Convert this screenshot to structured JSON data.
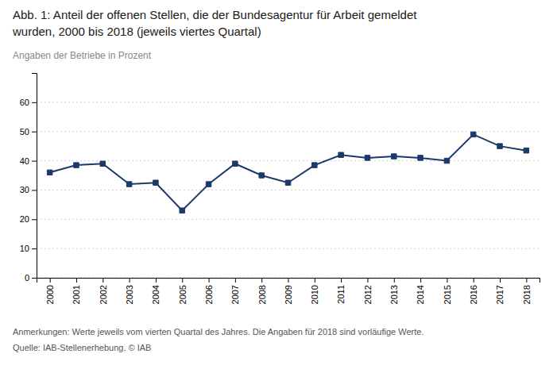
{
  "chart_data": {
    "type": "line",
    "title": [
      "Abb. 1: Anteil der offenen Stellen, die der Bundesagentur für Arbeit gemeldet",
      "wurden, 2000 bis 2018 (jeweils viertes Quartal)"
    ],
    "subtitle": "Angaben der Betriebe in Prozent",
    "annotations": [
      "Anmerkungen: Werte jeweils vom vierten Quartal des Jahres. Die Angaben für 2018 sind vorläufige Werte.",
      "Quelle: IAB-Stellenerhebung. © IAB"
    ],
    "x": [
      2000,
      2001,
      2002,
      2003,
      2004,
      2005,
      2006,
      2007,
      2008,
      2009,
      2010,
      2011,
      2012,
      2013,
      2014,
      2015,
      2016,
      2017,
      2018
    ],
    "values": [
      36,
      38.5,
      39,
      32,
      32.5,
      23,
      32,
      39,
      35,
      32.5,
      38.5,
      42,
      41,
      41.5,
      41,
      40,
      49,
      45,
      43.5
    ],
    "color": "#1b3a6b",
    "marker": "square",
    "xlim": [
      1999.5,
      2018.5
    ],
    "xticks": [
      2000,
      2001,
      2002,
      2003,
      2004,
      2005,
      2006,
      2007,
      2008,
      2009,
      2010,
      2011,
      2012,
      2013,
      2014,
      2015,
      2016,
      2017,
      2018
    ],
    "ylim": [
      0,
      70
    ],
    "yticks": [
      0,
      10,
      20,
      30,
      40,
      50,
      60
    ],
    "grid": true
  }
}
